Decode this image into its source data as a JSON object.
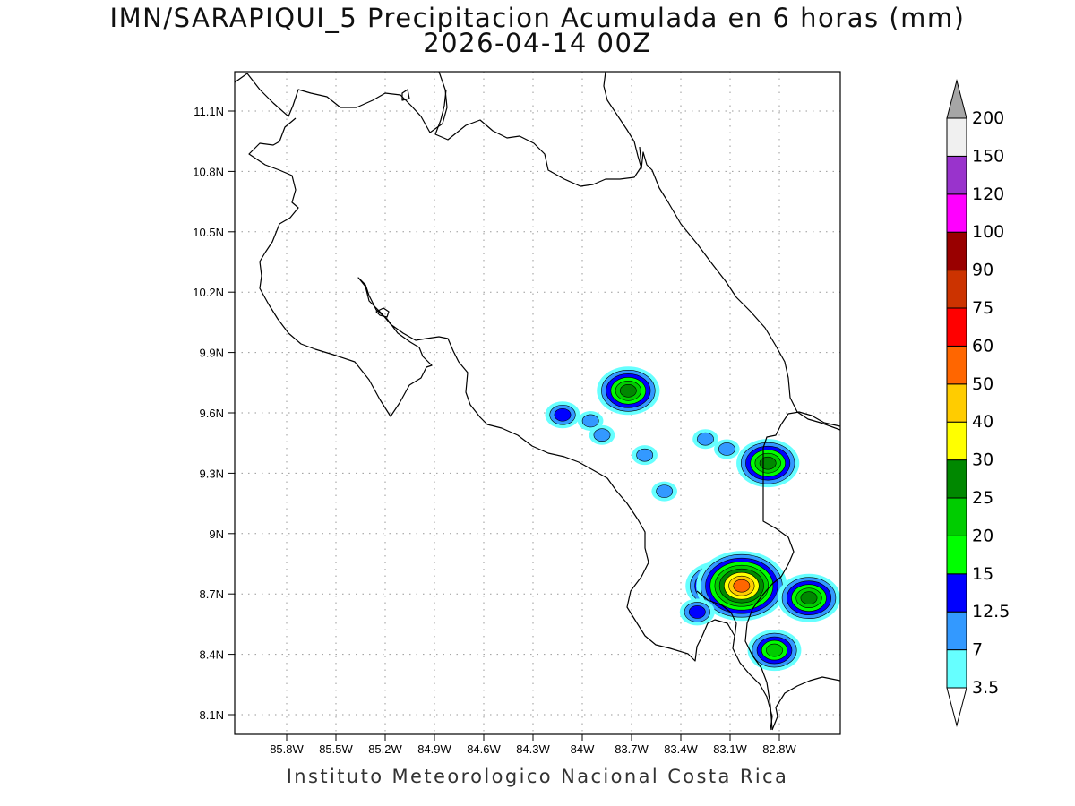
{
  "title": {
    "line1": "IMN/SARAPIQUI_5 Precipitacion Acumulada en 6 horas (mm)",
    "line2": "2026-04-14 00Z"
  },
  "footer": "Instituto Meteorologico Nacional Costa Rica",
  "map": {
    "lon_range": [
      -86.1,
      -83.0
    ],
    "lat_range": [
      8.0,
      11.3
    ],
    "grid": "dotted",
    "lon_ticks": [
      {
        "value": -85.8,
        "label": "85.8W"
      },
      {
        "value": -85.5,
        "label": "85.5W"
      },
      {
        "value": -85.2,
        "label": "85.2W"
      },
      {
        "value": -84.9,
        "label": "84.9W"
      },
      {
        "value": -84.6,
        "label": "84.6W"
      },
      {
        "value": -84.3,
        "label": "84.3W"
      },
      {
        "value": -84.0,
        "label": "84W"
      },
      {
        "value": -83.7,
        "label": "83.7W"
      },
      {
        "value": -83.4,
        "label": "83.4W"
      },
      {
        "value": -83.1,
        "label": "83.1W"
      },
      {
        "value": -82.8,
        "label": "82.8W"
      }
    ],
    "lat_ticks": [
      {
        "value": 11.1,
        "label": "11.1N"
      },
      {
        "value": 10.8,
        "label": "10.8N"
      },
      {
        "value": 10.5,
        "label": "10.5N"
      },
      {
        "value": 10.2,
        "label": "10.2N"
      },
      {
        "value": 9.9,
        "label": "9.9N"
      },
      {
        "value": 9.6,
        "label": "9.6N"
      },
      {
        "value": 9.3,
        "label": "9.3N"
      },
      {
        "value": 9.0,
        "label": "9N"
      },
      {
        "value": 8.7,
        "label": "8.7N"
      },
      {
        "value": 8.4,
        "label": "8.4N"
      },
      {
        "value": 8.1,
        "label": "8.1N"
      }
    ]
  },
  "colorbar": {
    "levels": [
      "3.5",
      "7",
      "12.5",
      "15",
      "20",
      "25",
      "30",
      "40",
      "50",
      "60",
      "75",
      "90",
      "100",
      "120",
      "150",
      "200"
    ],
    "colors": [
      "#66ffff",
      "#3399ff",
      "#0000ff",
      "#00ff00",
      "#00cc00",
      "#008800",
      "#ffff00",
      "#ffcc00",
      "#ff6600",
      "#ff0000",
      "#cc3300",
      "#990000",
      "#ff00ff",
      "#9933cc",
      "#f0f0f0",
      "#a6a6a6"
    ]
  },
  "precip_cells": [
    {
      "lon": -83.72,
      "lat": 9.71,
      "level": 5
    },
    {
      "lon": -84.12,
      "lat": 9.59,
      "level": 2
    },
    {
      "lon": -83.95,
      "lat": 9.56,
      "level": 1
    },
    {
      "lon": -83.88,
      "lat": 9.49,
      "level": 1
    },
    {
      "lon": -83.62,
      "lat": 9.39,
      "level": 1
    },
    {
      "lon": -83.25,
      "lat": 9.47,
      "level": 1
    },
    {
      "lon": -83.12,
      "lat": 9.42,
      "level": 1
    },
    {
      "lon": -82.87,
      "lat": 9.35,
      "level": 5
    },
    {
      "lon": -83.5,
      "lat": 9.21,
      "level": 1
    },
    {
      "lon": -83.18,
      "lat": 8.74,
      "level": 5
    },
    {
      "lon": -83.03,
      "lat": 8.74,
      "level": 8
    },
    {
      "lon": -83.3,
      "lat": 8.61,
      "level": 2
    },
    {
      "lon": -82.83,
      "lat": 8.42,
      "level": 4
    },
    {
      "lon": -82.62,
      "lat": 8.68,
      "level": 5
    }
  ]
}
